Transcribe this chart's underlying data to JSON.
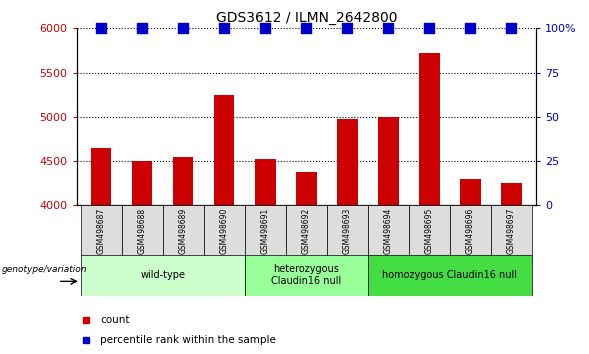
{
  "title": "GDS3612 / ILMN_2642800",
  "samples": [
    "GSM498687",
    "GSM498688",
    "GSM498689",
    "GSM498690",
    "GSM498691",
    "GSM498692",
    "GSM498693",
    "GSM498694",
    "GSM498695",
    "GSM498696",
    "GSM498697"
  ],
  "counts": [
    4650,
    4500,
    4550,
    5250,
    4520,
    4380,
    4980,
    5000,
    5720,
    4300,
    4250
  ],
  "percentile_ranks": [
    100,
    100,
    100,
    100,
    100,
    100,
    100,
    100,
    100,
    100,
    100
  ],
  "ymin": 4000,
  "ymax": 6000,
  "yticks": [
    4000,
    4500,
    5000,
    5500,
    6000
  ],
  "right_yticks": [
    0,
    25,
    50,
    75,
    100
  ],
  "right_ytick_labels": [
    "0",
    "25",
    "50",
    "75",
    "100%"
  ],
  "groups": [
    {
      "label": "wild-type",
      "start": 0,
      "end": 3,
      "color": "#ccffcc"
    },
    {
      "label": "heterozygous\nClaudin16 null",
      "start": 4,
      "end": 6,
      "color": "#99ff99"
    },
    {
      "label": "homozygous Claudin16 null",
      "start": 7,
      "end": 10,
      "color": "#44dd44"
    }
  ],
  "bar_color": "#cc0000",
  "dot_color": "#0000cc",
  "bar_width": 0.5,
  "dot_size": 55,
  "left_tick_color": "#cc0000",
  "right_tick_color": "#0000cc",
  "genotype_label": "genotype/variation",
  "legend_count_label": "count",
  "legend_percentile_label": "percentile rank within the sample",
  "sample_box_color": "#dddddd"
}
